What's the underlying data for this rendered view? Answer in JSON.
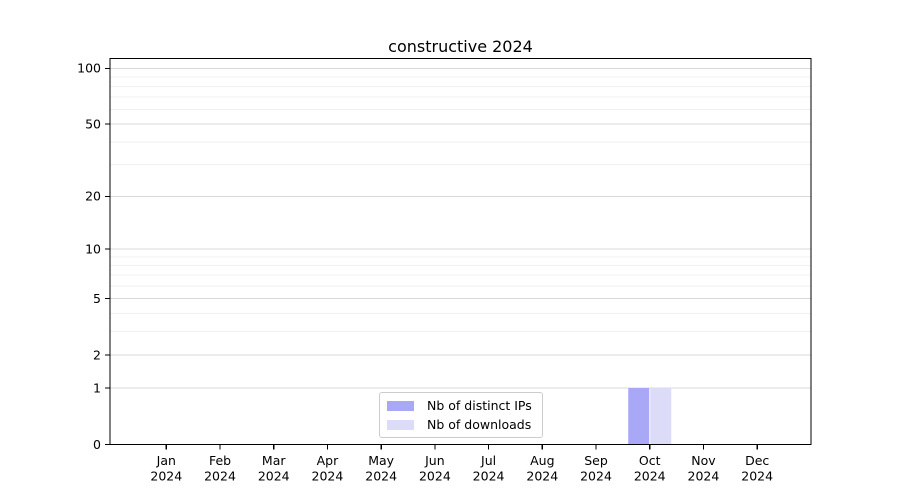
{
  "title": "constructive 2024",
  "colors": {
    "distinct_ips": "#a8a8f6",
    "downloads": "#dcdcf9",
    "grid_major": "#d8d8d8",
    "grid_minor": "#f0f0f0",
    "axis": "#000000",
    "legend_border": "#cccccc",
    "background": "#ffffff"
  },
  "legend": {
    "items": [
      {
        "label": "Nb of distinct IPs"
      },
      {
        "label": "Nb of downloads"
      }
    ]
  },
  "chart_data": {
    "type": "bar",
    "title": "constructive 2024",
    "categories": [
      "Jan 2024",
      "Feb 2024",
      "Mar 2024",
      "Apr 2024",
      "May 2024",
      "Jun 2024",
      "Jul 2024",
      "Aug 2024",
      "Sep 2024",
      "Oct 2024",
      "Nov 2024",
      "Dec 2024"
    ],
    "series": [
      {
        "name": "Nb of distinct IPs",
        "color": "#a8a8f6",
        "values": [
          0,
          0,
          0,
          0,
          0,
          0,
          0,
          0,
          0,
          1,
          0,
          0
        ]
      },
      {
        "name": "Nb of downloads",
        "color": "#dcdcf9",
        "values": [
          0,
          0,
          0,
          0,
          0,
          0,
          0,
          0,
          0,
          1,
          0,
          0
        ]
      }
    ],
    "xlabel": "",
    "ylabel": "",
    "y_axis": {
      "scale": "log1p",
      "major_ticks": [
        100,
        50,
        20,
        10,
        5,
        2,
        1,
        0
      ],
      "minor_gridlines": [
        3,
        4,
        6,
        7,
        8,
        9,
        30,
        40,
        60,
        70,
        80,
        90
      ],
      "ylim": [
        0,
        113
      ]
    },
    "grid": "horizontal",
    "legend_position": "lower center"
  }
}
